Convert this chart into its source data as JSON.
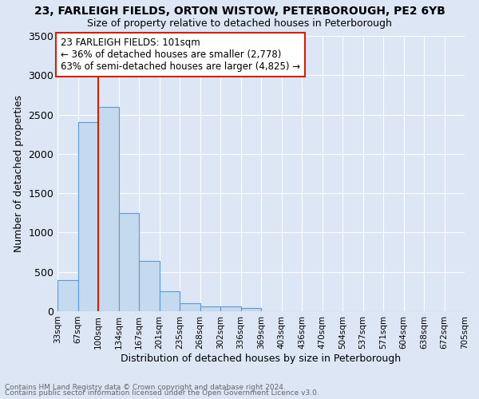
{
  "title1": "23, FARLEIGH FIELDS, ORTON WISTOW, PETERBOROUGH, PE2 6YB",
  "title2": "Size of property relative to detached houses in Peterborough",
  "xlabel": "Distribution of detached houses by size in Peterborough",
  "ylabel": "Number of detached properties",
  "footnote1": "Contains HM Land Registry data © Crown copyright and database right 2024.",
  "footnote2": "Contains public sector information licensed under the Open Government Licence v3.0.",
  "bin_labels": [
    "33sqm",
    "67sqm",
    "100sqm",
    "134sqm",
    "167sqm",
    "201sqm",
    "235sqm",
    "268sqm",
    "302sqm",
    "336sqm",
    "369sqm",
    "403sqm",
    "436sqm",
    "470sqm",
    "504sqm",
    "537sqm",
    "571sqm",
    "604sqm",
    "638sqm",
    "672sqm",
    "705sqm"
  ],
  "bar_values": [
    400,
    2400,
    2600,
    1250,
    640,
    250,
    100,
    60,
    60,
    40,
    0,
    0,
    0,
    0,
    0,
    0,
    0,
    0,
    0,
    0
  ],
  "bar_color": "#c5d9ef",
  "bar_edge_color": "#5b9bd5",
  "vline_color": "#cc2200",
  "ylim": [
    0,
    3500
  ],
  "annotation_line1": "23 FARLEIGH FIELDS: 101sqm",
  "annotation_line2": "← 36% of detached houses are smaller (2,778)",
  "annotation_line3": "63% of semi-detached houses are larger (4,825) →",
  "annotation_box_color": "#ffffff",
  "annotation_border_color": "#cc2200",
  "background_color": "#dce6f5",
  "grid_color": "#ffffff",
  "footnote_color": "#666666"
}
